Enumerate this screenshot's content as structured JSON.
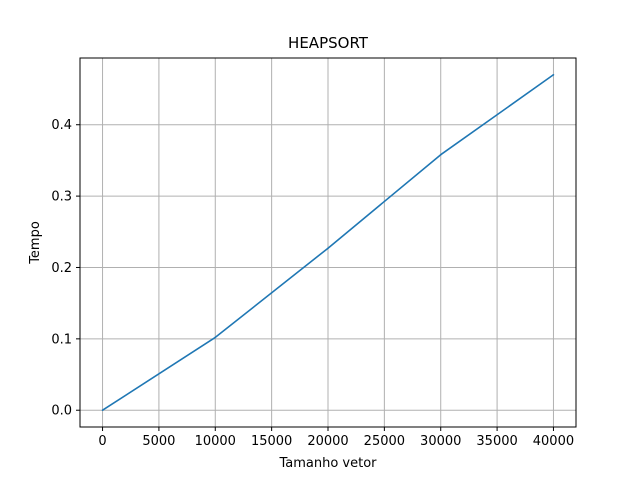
{
  "chart_data": {
    "type": "line",
    "title": "HEAPSORT",
    "xlabel": "Tamanho vetor",
    "ylabel": "Tempo",
    "x": [
      0,
      10000,
      20000,
      30000,
      40000
    ],
    "series": [
      {
        "values": [
          0.0,
          0.102,
          0.227,
          0.358,
          0.47
        ],
        "color": "#1f77b4"
      }
    ],
    "xlim": [
      -2000,
      42000
    ],
    "ylim": [
      -0.0235,
      0.4935
    ],
    "xticks": [
      0,
      5000,
      10000,
      15000,
      20000,
      25000,
      30000,
      35000,
      40000
    ],
    "xtick_labels": [
      "0",
      "5000",
      "10000",
      "15000",
      "20000",
      "25000",
      "30000",
      "35000",
      "40000"
    ],
    "yticks": [
      0.0,
      0.1,
      0.2,
      0.3,
      0.4
    ],
    "ytick_labels": [
      "0.0",
      "0.1",
      "0.2",
      "0.3",
      "0.4"
    ],
    "grid": true,
    "legend": "none"
  }
}
